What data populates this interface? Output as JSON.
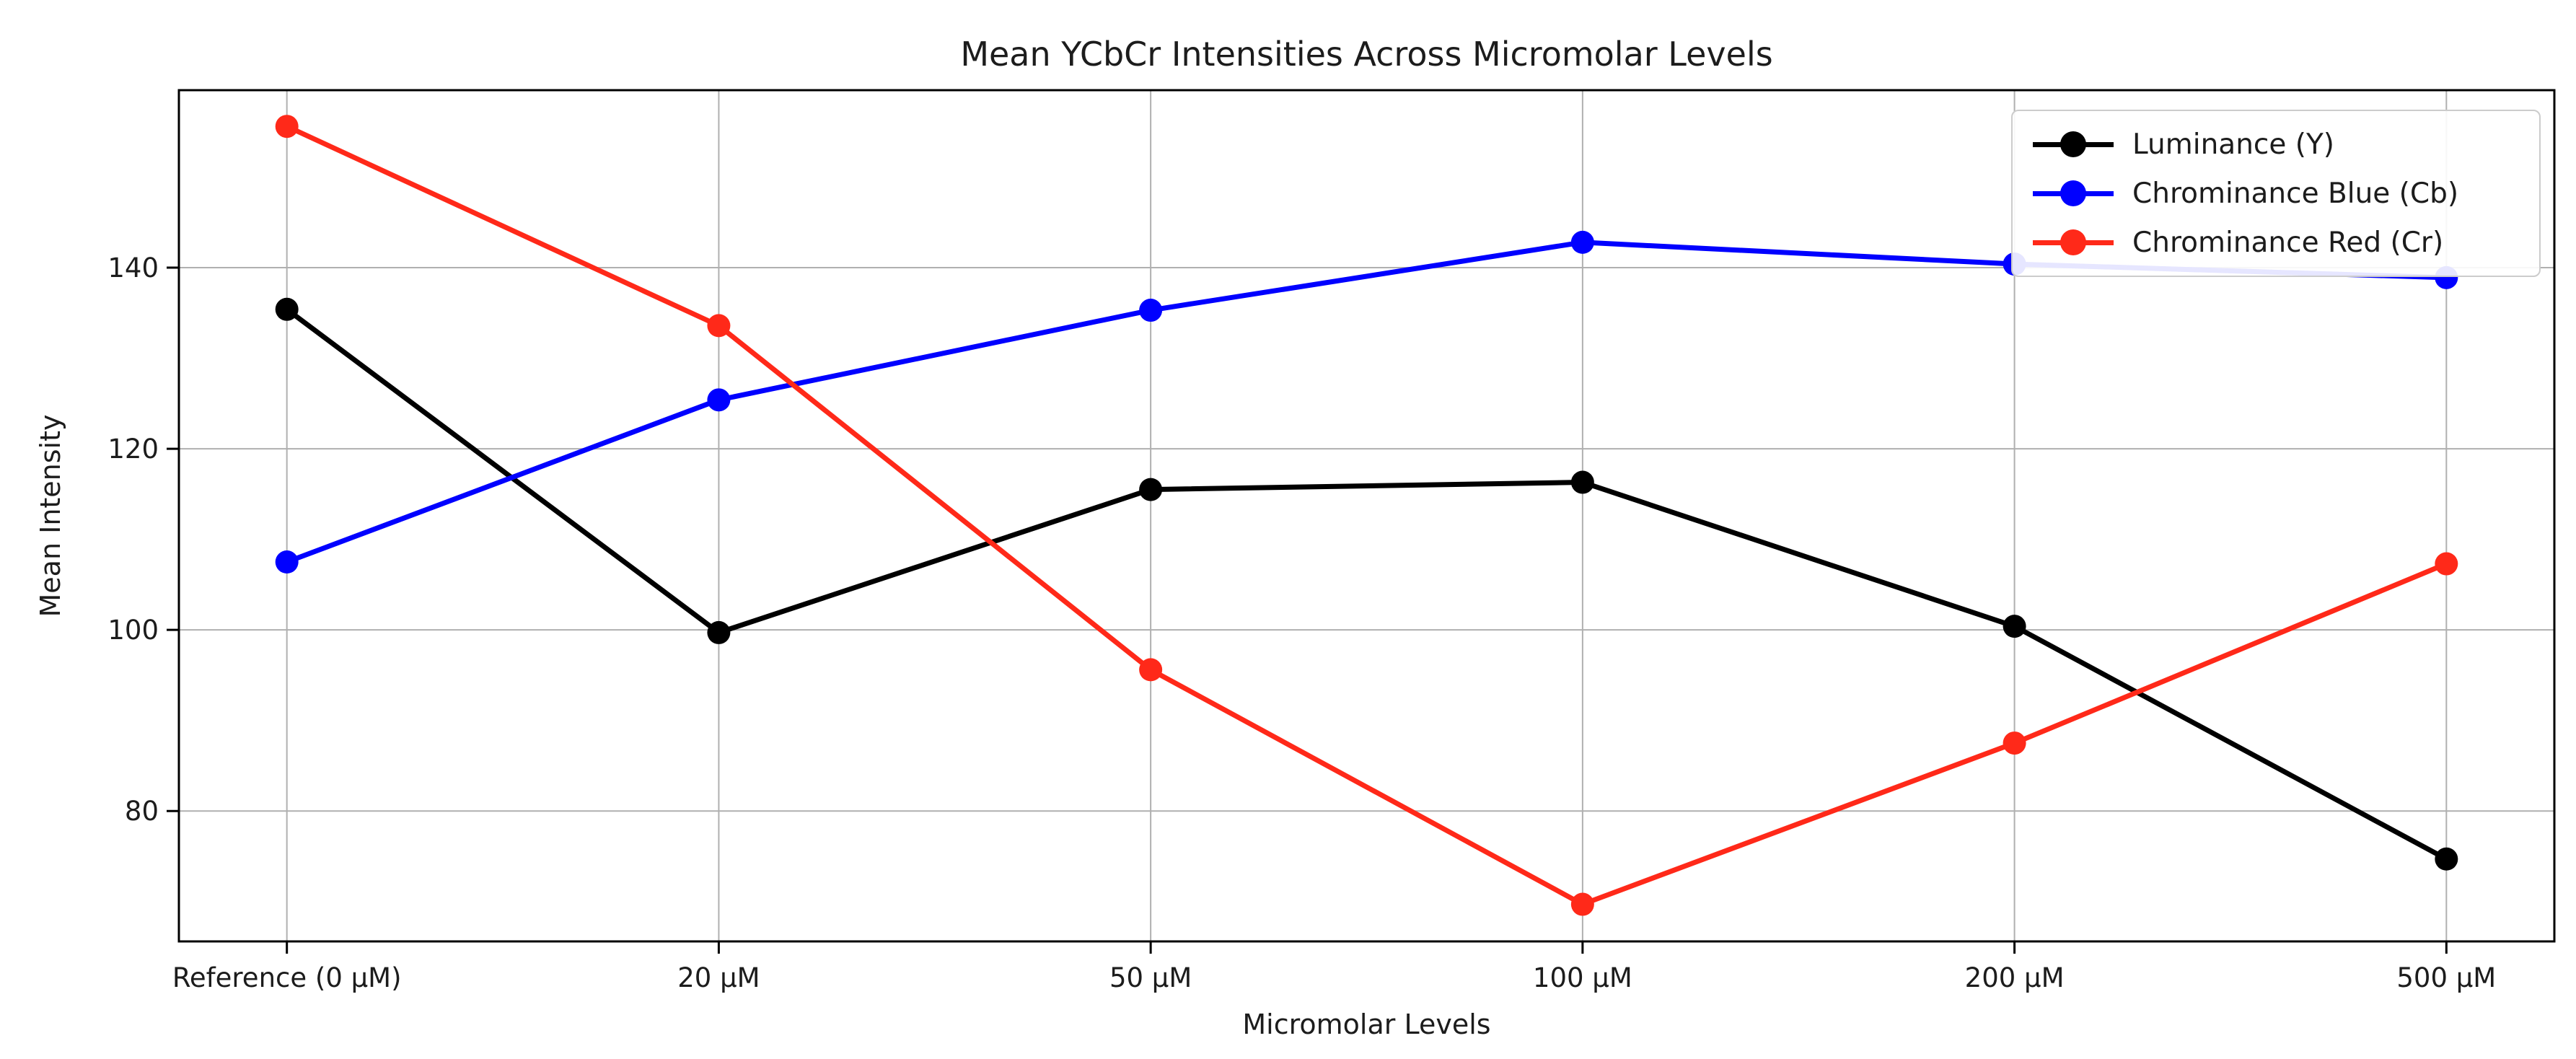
{
  "figure": {
    "background": "#ffffff"
  },
  "chart_data": {
    "type": "line",
    "title": "Mean YCbCr Intensities Across Micromolar Levels",
    "xlabel": "Micromolar Levels",
    "ylabel": "Mean Intensity",
    "categories": [
      "Reference (0 μM)",
      "20 μM",
      "50 μM",
      "100 μM",
      "200 μM",
      "500 μM"
    ],
    "series": [
      {
        "name": "Luminance (Y)",
        "color": "#000000",
        "values": [
          135.4,
          99.7,
          115.5,
          116.3,
          100.4,
          74.7
        ]
      },
      {
        "name": "Chrominance Blue (Cb)",
        "color": "#0000ff",
        "values": [
          107.5,
          125.4,
          135.3,
          142.8,
          140.4,
          138.9
        ]
      },
      {
        "name": "Chrominance Red (Cr)",
        "color": "#ff2919",
        "values": [
          155.6,
          133.6,
          95.6,
          69.7,
          87.5,
          107.3
        ]
      }
    ],
    "yticks": [
      80,
      100,
      120,
      140
    ],
    "ylim": [
      65.6,
      159.6
    ],
    "xlim": [
      -0.25,
      5.25
    ],
    "grid": true,
    "grid_color": "#b0b0b0",
    "axis_color": "#000000",
    "text_color": "#1c1c1c",
    "legend_position": "upper right"
  }
}
